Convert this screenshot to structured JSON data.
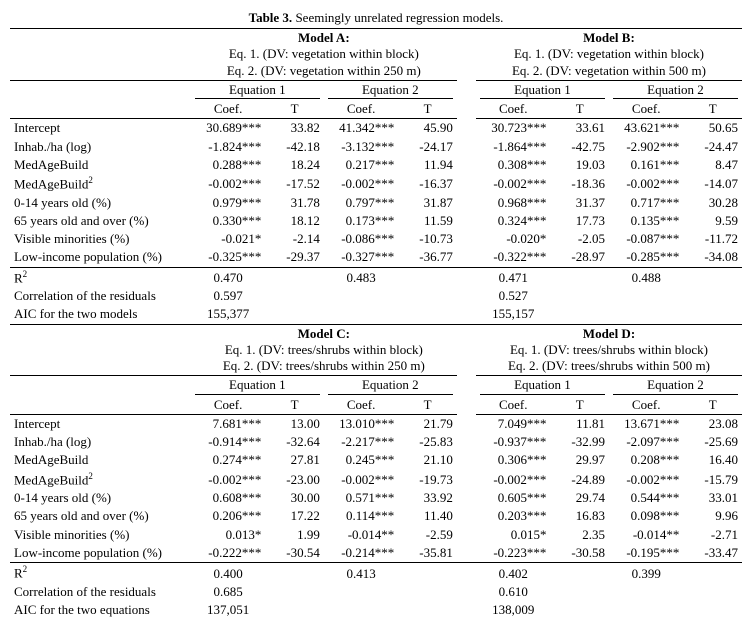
{
  "title_strong": "Table 3.",
  "title_rest": " Seemingly unrelated regression models.",
  "variables": [
    "Intercept",
    "Inhab./ha (log)",
    "MedAgeBuild",
    "MedAgeBuild²",
    "0-14 years old (%)",
    "65 years old and over (%)",
    "Visible minorities (%)",
    "Low-income population (%)"
  ],
  "summary_labels": [
    "R²",
    "Correlation of the residuals",
    "AIC for the two models"
  ],
  "summary_labels_bottom": [
    "R²",
    "Correlation of the residuals",
    "AIC for the two equations"
  ],
  "col_sub": {
    "coef": "Coef.",
    "t": "T"
  },
  "eq_labels": {
    "eq1": "Equation 1",
    "eq2": "Equation 2"
  },
  "panels": [
    {
      "left": {
        "name": "Model A:",
        "desc": [
          "Eq. 1. (DV: vegetation within block)",
          "Eq. 2. (DV: vegetation within 250 m)"
        ],
        "eq1": {
          "coef": [
            "30.689***",
            "-1.824***",
            "0.288***",
            "-0.002***",
            "0.979***",
            "0.330***",
            "-0.021*",
            "-0.325***"
          ],
          "t": [
            "33.82",
            "-42.18",
            "18.24",
            "-17.52",
            "31.78",
            "18.12",
            "-2.14",
            "-29.37"
          ]
        },
        "eq2": {
          "coef": [
            "41.342***",
            "-3.132***",
            "0.217***",
            "-0.002***",
            "0.797***",
            "0.173***",
            "-0.086***",
            "-0.327***"
          ],
          "t": [
            "45.90",
            "-24.17",
            "11.94",
            "-16.37",
            "31.87",
            "11.59",
            "-10.73",
            "-36.77"
          ]
        },
        "summary": {
          "r2_eq1": "0.470",
          "r2_eq2": "0.483",
          "corr": "0.597",
          "aic": "155,377"
        }
      },
      "right": {
        "name": "Model B:",
        "desc": [
          "Eq. 1. (DV: vegetation within block)",
          "Eq. 2. (DV: vegetation within 500 m)"
        ],
        "eq1": {
          "coef": [
            "30.723***",
            "-1.864***",
            "0.308***",
            "-0.002***",
            "0.968***",
            "0.324***",
            "-0.020*",
            "-0.322***"
          ],
          "t": [
            "33.61",
            "-42.75",
            "19.03",
            "-18.36",
            "31.37",
            "17.73",
            "-2.05",
            "-28.97"
          ]
        },
        "eq2": {
          "coef": [
            "43.621***",
            "-2.902***",
            "0.161***",
            "-0.002***",
            "0.717***",
            "0.135***",
            "-0.087***",
            "-0.285***"
          ],
          "t": [
            "50.65",
            "-24.47",
            "8.47",
            "-14.07",
            "30.28",
            "9.59",
            "-11.72",
            "-34.08"
          ]
        },
        "summary": {
          "r2_eq1": "0.471",
          "r2_eq2": "0.488",
          "corr": "0.527",
          "aic": "155,157"
        }
      }
    },
    {
      "left": {
        "name": "Model C:",
        "desc": [
          "Eq. 1. (DV: trees/shrubs within block)",
          "Eq. 2. (DV: trees/shrubs within 250 m)"
        ],
        "eq1": {
          "coef": [
            "7.681***",
            "-0.914***",
            "0.274***",
            "-0.002***",
            "0.608***",
            "0.206***",
            "0.013*",
            "-0.222***"
          ],
          "t": [
            "13.00",
            "-32.64",
            "27.81",
            "-23.00",
            "30.00",
            "17.22",
            "1.99",
            "-30.54"
          ]
        },
        "eq2": {
          "coef": [
            "13.010***",
            "-2.217***",
            "0.245***",
            "-0.002***",
            "0.571***",
            "0.114***",
            "-0.014**",
            "-0.214***"
          ],
          "t": [
            "21.79",
            "-25.83",
            "21.10",
            "-19.73",
            "33.92",
            "11.40",
            "-2.59",
            "-35.81"
          ]
        },
        "summary": {
          "r2_eq1": "0.400",
          "r2_eq2": "0.413",
          "corr": "0.685",
          "aic": "137,051"
        }
      },
      "right": {
        "name": "Model D:",
        "desc": [
          "Eq. 1. (DV: trees/shrubs within block)",
          "Eq. 2. (DV: trees/shrubs within 500 m)"
        ],
        "eq1": {
          "coef": [
            "7.049***",
            "-0.937***",
            "0.306***",
            "-0.002***",
            "0.605***",
            "0.203***",
            "0.015*",
            "-0.223***"
          ],
          "t": [
            "11.81",
            "-32.99",
            "29.97",
            "-24.89",
            "29.74",
            "16.83",
            "2.35",
            "-30.58"
          ]
        },
        "eq2": {
          "coef": [
            "13.671***",
            "-2.097***",
            "0.208***",
            "-0.002***",
            "0.544***",
            "0.098***",
            "-0.014**",
            "-0.195***"
          ],
          "t": [
            "23.08",
            "-25.69",
            "16.40",
            "-15.79",
            "33.01",
            "9.96",
            "-2.71",
            "-33.47"
          ]
        },
        "summary": {
          "r2_eq1": "0.402",
          "r2_eq2": "0.399",
          "corr": "0.610",
          "aic": "138,009"
        }
      }
    }
  ]
}
